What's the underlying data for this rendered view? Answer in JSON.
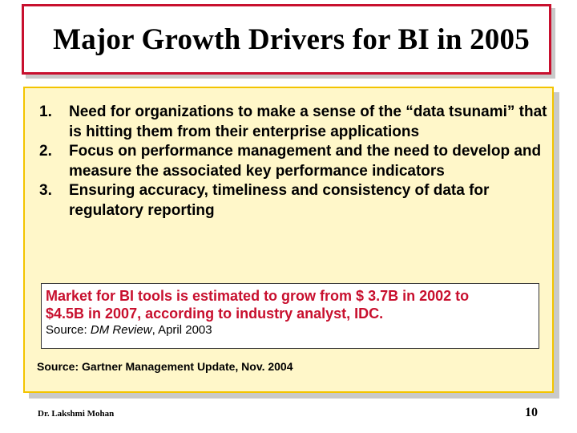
{
  "title": "Major Growth Drivers for BI in 2005",
  "drivers": [
    {
      "number": "1.",
      "text": "Need for organizations to make a sense of the “data tsunami” that is hitting them from their enterprise applications"
    },
    {
      "number": "2.",
      "text": "Focus on performance management and the need to develop and measure the associated key performance indicators"
    },
    {
      "number": "3.",
      "text": "Ensuring accuracy, timeliness and consistency of data for regulatory reporting"
    }
  ],
  "callout": {
    "line1": "Market for BI tools is estimated to grow from $ 3.7B in 2002 to",
    "line2": "$4.5B in 2007, according to industry analyst, IDC.",
    "source_prefix": "Source: ",
    "source_publication": "DM Review",
    "source_date": ", April 2003"
  },
  "gartner_source": "Source: Gartner Management Update, Nov. 2004",
  "footer": {
    "author": "Dr. Lakshmi Mohan",
    "page_number": "10"
  },
  "colors": {
    "title_border": "#c8102e",
    "content_background": "#fff7c9",
    "content_border": "#f3c400",
    "callout_text": "#c8102e"
  }
}
